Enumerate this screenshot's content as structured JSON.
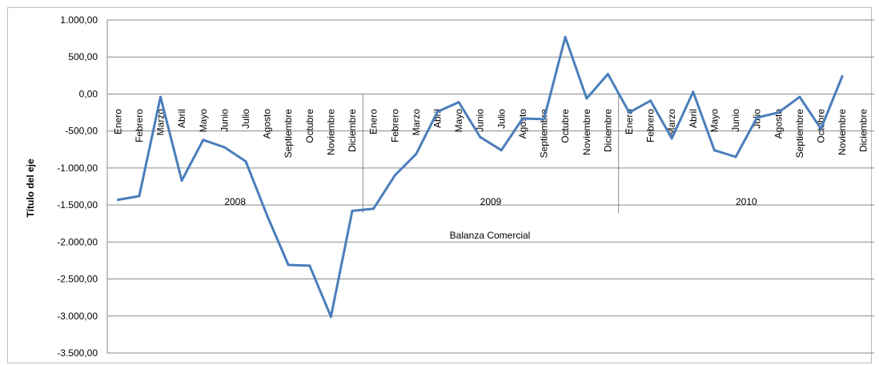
{
  "chart_data": {
    "type": "line",
    "ylabel": "Título del eje",
    "xlabel": "Balanza Comercial",
    "ylim": [
      -3500,
      1000
    ],
    "yticks": [
      1000,
      500,
      0,
      -500,
      -1000,
      -1500,
      -2000,
      -2500,
      -3000,
      -3500
    ],
    "ytick_labels": [
      "1.000,00",
      "500,00",
      "0,00",
      "-500,00",
      "-1.000,00",
      "-1.500,00",
      "-2.000,00",
      "-2.500,00",
      "-3.000,00",
      "-3.500,00"
    ],
    "grid": true,
    "legend": "none",
    "groups": [
      "2008",
      "2009",
      "2010"
    ],
    "months": [
      "Enero",
      "Febrero",
      "Marzo",
      "Abril",
      "Mayo",
      "Junio",
      "Julio",
      "Agosto",
      "Septiembre",
      "Octubre",
      "Noviembre",
      "Diciembre"
    ],
    "line_color": "#4a7ebb",
    "series": [
      {
        "values": [
          -1430,
          -1380,
          -40,
          -1170,
          -620,
          -720,
          -910,
          -1640,
          -2310,
          -2320,
          -3010,
          -1580,
          -1550,
          -1100,
          -810,
          -240,
          -110,
          -580,
          -760,
          -330,
          -340,
          770,
          -60,
          270,
          -250,
          -90,
          -600,
          30,
          -760,
          -850,
          -320,
          -250,
          -40,
          -470,
          240
        ]
      }
    ]
  }
}
